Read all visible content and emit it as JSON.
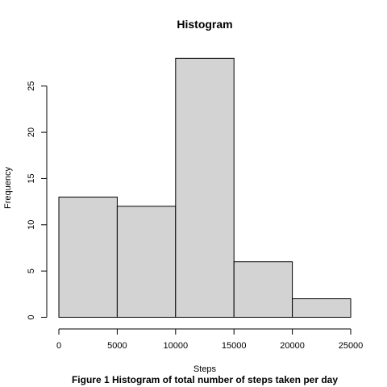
{
  "chart_data": {
    "type": "bar",
    "title": "Histogram",
    "xlabel": "Steps",
    "ylabel": "Frequency",
    "caption": "Figure 1  Histogram of total number of steps taken per day",
    "bins": [
      {
        "from": 0,
        "to": 5000,
        "count": 13
      },
      {
        "from": 5000,
        "to": 10000,
        "count": 12
      },
      {
        "from": 10000,
        "to": 15000,
        "count": 28
      },
      {
        "from": 15000,
        "to": 20000,
        "count": 6
      },
      {
        "from": 20000,
        "to": 25000,
        "count": 2
      }
    ],
    "xlim": [
      0,
      25000
    ],
    "ylim": [
      0,
      28
    ],
    "x_ticks": [
      0,
      5000,
      10000,
      15000,
      20000,
      25000
    ],
    "y_ticks": [
      0,
      5,
      10,
      15,
      20,
      25
    ],
    "bar_color": "#d3d3d3",
    "grid": false
  }
}
